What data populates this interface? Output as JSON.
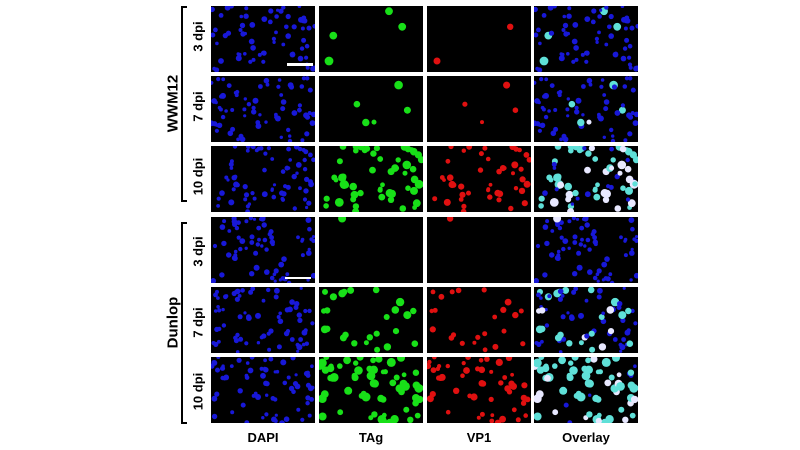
{
  "columns": [
    "DAPI",
    "TAg",
    "VP1",
    "Overlay"
  ],
  "groups": [
    {
      "name": "WWM12",
      "rows": [
        "3 dpi",
        "7 dpi",
        "10 dpi"
      ]
    },
    {
      "name": "Dunlop",
      "rows": [
        "3 dpi",
        "7 dpi",
        "10 dpi"
      ]
    }
  ],
  "colors": {
    "dapi": "#1818d8",
    "tag": "#18e018",
    "vp1": "#e01010",
    "overlay_cyan": "#5fe0d8",
    "background": "#000000"
  }
}
